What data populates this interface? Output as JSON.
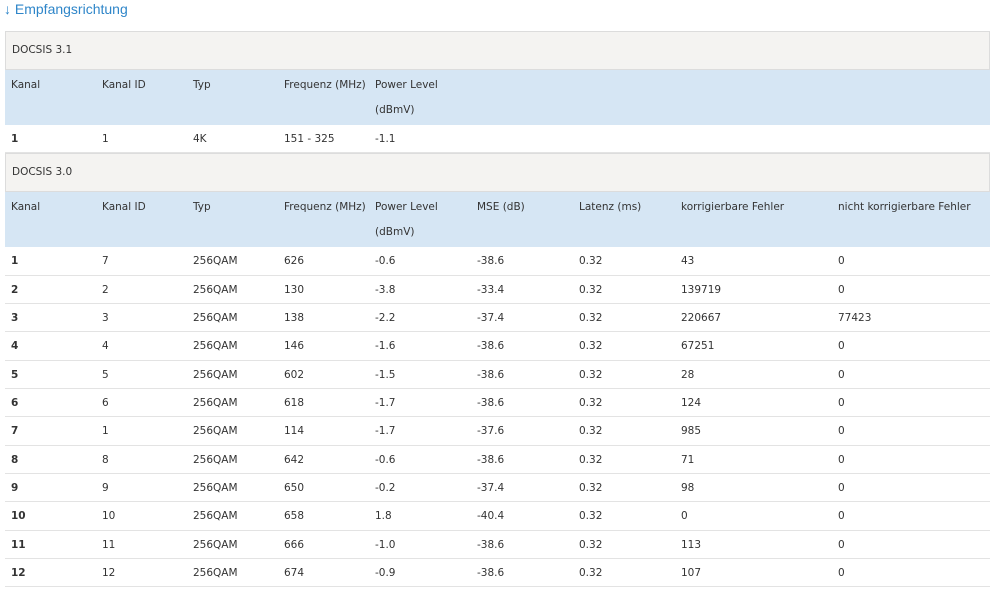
{
  "title": "↓ Empfangsrichtung",
  "sections": [
    {
      "title": "DOCSIS 3.1",
      "columns": [
        "Kanal",
        "Kanal ID",
        "Typ",
        "Frequenz (MHz)",
        "Power Level (dBmV)"
      ],
      "rows": [
        [
          "1",
          "1",
          "4K",
          "151 - 325",
          "-1.1"
        ]
      ]
    },
    {
      "title": "DOCSIS 3.0",
      "columns": [
        "Kanal",
        "Kanal ID",
        "Typ",
        "Frequenz (MHz)",
        "Power Level (dBmV)",
        "MSE (dB)",
        "Latenz (ms)",
        "korrigierbare Fehler",
        "nicht korrigierbare Fehler"
      ],
      "rows": [
        [
          "1",
          "7",
          "256QAM",
          "626",
          "-0.6",
          "-38.6",
          "0.32",
          "43",
          "0"
        ],
        [
          "2",
          "2",
          "256QAM",
          "130",
          "-3.8",
          "-33.4",
          "0.32",
          "139719",
          "0"
        ],
        [
          "3",
          "3",
          "256QAM",
          "138",
          "-2.2",
          "-37.4",
          "0.32",
          "220667",
          "77423"
        ],
        [
          "4",
          "4",
          "256QAM",
          "146",
          "-1.6",
          "-38.6",
          "0.32",
          "67251",
          "0"
        ],
        [
          "5",
          "5",
          "256QAM",
          "602",
          "-1.5",
          "-38.6",
          "0.32",
          "28",
          "0"
        ],
        [
          "6",
          "6",
          "256QAM",
          "618",
          "-1.7",
          "-38.6",
          "0.32",
          "124",
          "0"
        ],
        [
          "7",
          "1",
          "256QAM",
          "114",
          "-1.7",
          "-37.6",
          "0.32",
          "985",
          "0"
        ],
        [
          "8",
          "8",
          "256QAM",
          "642",
          "-0.6",
          "-38.6",
          "0.32",
          "71",
          "0"
        ],
        [
          "9",
          "9",
          "256QAM",
          "650",
          "-0.2",
          "-37.4",
          "0.32",
          "98",
          "0"
        ],
        [
          "10",
          "10",
          "256QAM",
          "658",
          "1.8",
          "-40.4",
          "0.32",
          "0",
          "0"
        ],
        [
          "11",
          "11",
          "256QAM",
          "666",
          "-1.0",
          "-38.6",
          "0.32",
          "113",
          "0"
        ],
        [
          "12",
          "12",
          "256QAM",
          "674",
          "-0.9",
          "-38.6",
          "0.32",
          "107",
          "0"
        ]
      ]
    }
  ]
}
